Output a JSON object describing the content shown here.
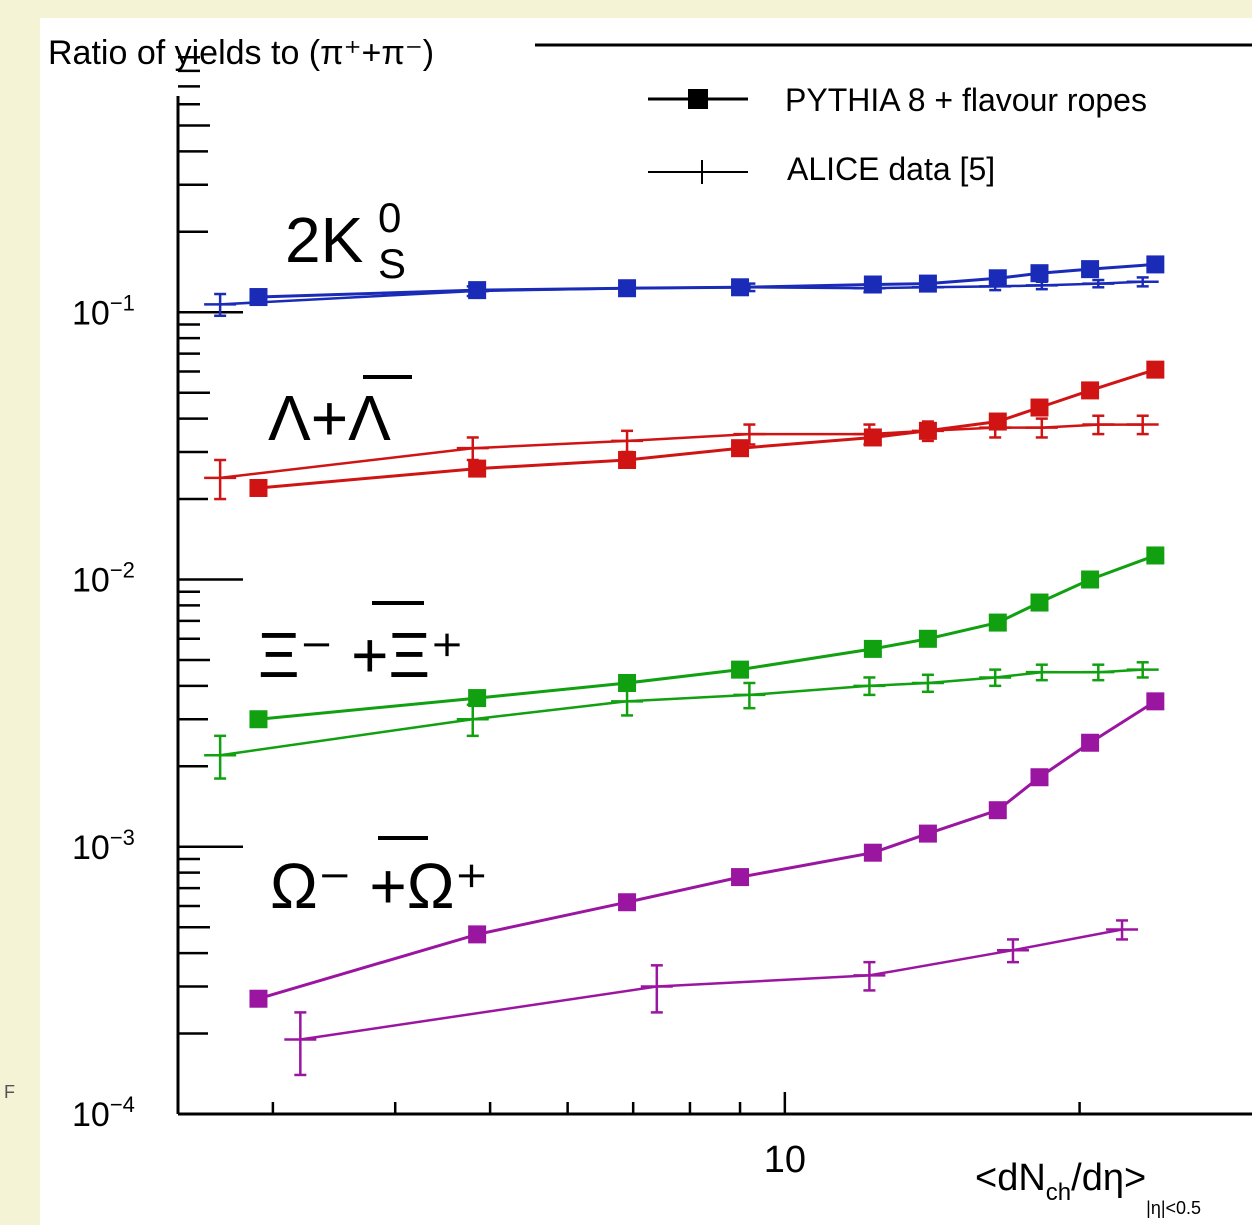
{
  "chart_data": {
    "type": "line",
    "title": "",
    "ylabel": "Ratio of yields to (π⁺+π⁻)",
    "xlabel": "<dN_ch/dη>_|η|<0.5",
    "xlabel_parts": {
      "main": "<dN",
      "sub1": "ch",
      "mid": "/dη>",
      "sub2": "|η|<0.5"
    },
    "xscale": "log",
    "yscale": "log",
    "xlim": [
      2.4,
      30
    ],
    "ylim": [
      0.0001,
      1
    ],
    "x_tick_labels": [
      "10"
    ],
    "y_tick_labels": [
      {
        "base": "10",
        "exp": "−1",
        "value": 0.1
      },
      {
        "base": "10",
        "exp": "−2",
        "value": 0.01
      },
      {
        "base": "10",
        "exp": "−3",
        "value": 0.001
      },
      {
        "base": "10",
        "exp": "−4",
        "value": 0.0001
      }
    ],
    "legend": {
      "placement": "top-right",
      "entries": [
        {
          "label": "PYTHIA 8 + flavour ropes",
          "marker": "square"
        },
        {
          "label": "ALICE data  [5]",
          "marker": "cross"
        }
      ]
    },
    "species_labels": [
      {
        "text": "2K",
        "sup": "0",
        "sub": "S"
      },
      {
        "text": "Λ+Λ",
        "overbar_last": true
      },
      {
        "text": "Ξ⁻ +Ξ⁺",
        "overbar_second": true
      },
      {
        "text": "Ω⁻ +Ω⁺",
        "overbar_second": true
      }
    ],
    "series": [
      {
        "name": "K0S PYTHIA",
        "kind": "model",
        "color": "#1a2bb8",
        "x": [
          2.9,
          4.85,
          6.9,
          9.0,
          12.3,
          14.0,
          16.5,
          18.2,
          20.5,
          23.9
        ],
        "y": [
          0.114,
          0.121,
          0.123,
          0.124,
          0.127,
          0.128,
          0.134,
          0.14,
          0.145,
          0.151
        ]
      },
      {
        "name": "K0S ALICE",
        "kind": "data",
        "color": "#1a2bb8",
        "x": [
          2.65,
          4.8,
          6.9,
          9.2,
          12.2,
          14.0,
          16.4,
          18.3,
          20.9,
          23.2
        ],
        "y": [
          0.107,
          0.12,
          0.123,
          0.124,
          0.123,
          0.124,
          0.125,
          0.126,
          0.128,
          0.13
        ],
        "yerr": [
          0.01,
          0.005,
          0.004,
          0.004,
          0.004,
          0.004,
          0.004,
          0.004,
          0.004,
          0.005
        ]
      },
      {
        "name": "Lambda PYTHIA",
        "kind": "model",
        "color": "#d01414",
        "x": [
          2.9,
          4.85,
          6.9,
          9.0,
          12.3,
          14.0,
          16.5,
          18.2,
          20.5,
          23.9
        ],
        "y": [
          0.022,
          0.026,
          0.028,
          0.031,
          0.034,
          0.036,
          0.039,
          0.044,
          0.051,
          0.061
        ]
      },
      {
        "name": "Lambda ALICE",
        "kind": "data",
        "color": "#d01414",
        "x": [
          2.65,
          4.8,
          6.9,
          9.2,
          12.2,
          14.0,
          16.4,
          18.3,
          20.9,
          23.2
        ],
        "y": [
          0.024,
          0.031,
          0.033,
          0.035,
          0.035,
          0.036,
          0.037,
          0.037,
          0.038,
          0.038
        ],
        "yerr": [
          0.004,
          0.003,
          0.003,
          0.003,
          0.003,
          0.003,
          0.003,
          0.003,
          0.003,
          0.003
        ]
      },
      {
        "name": "Xi PYTHIA",
        "kind": "model",
        "color": "#10a010",
        "x": [
          2.9,
          4.85,
          6.9,
          9.0,
          12.3,
          14.0,
          16.5,
          18.2,
          20.5,
          23.9
        ],
        "y": [
          0.003,
          0.0036,
          0.0041,
          0.0046,
          0.0055,
          0.006,
          0.0069,
          0.0082,
          0.01,
          0.0123
        ]
      },
      {
        "name": "Xi ALICE",
        "kind": "data",
        "color": "#10a010",
        "x": [
          2.65,
          4.8,
          6.9,
          9.2,
          12.2,
          14.0,
          16.4,
          18.3,
          20.9,
          23.2
        ],
        "y": [
          0.0022,
          0.003,
          0.0035,
          0.0037,
          0.004,
          0.0041,
          0.0043,
          0.0045,
          0.0045,
          0.0046
        ],
        "yerr": [
          0.0004,
          0.0004,
          0.0004,
          0.0004,
          0.0003,
          0.0003,
          0.0003,
          0.0003,
          0.0003,
          0.0003
        ]
      },
      {
        "name": "Omega PYTHIA",
        "kind": "model",
        "color": "#9b16a0",
        "x": [
          2.9,
          4.85,
          6.9,
          9.0,
          12.3,
          14.0,
          16.5,
          18.2,
          20.5,
          23.9
        ],
        "y": [
          0.00027,
          0.00047,
          0.00062,
          0.00077,
          0.00095,
          0.00112,
          0.00137,
          0.00182,
          0.00245,
          0.0035
        ]
      },
      {
        "name": "Omega ALICE",
        "kind": "data",
        "color": "#9b16a0",
        "x": [
          3.2,
          7.4,
          12.2,
          17.1,
          22.1
        ],
        "y": [
          0.00019,
          0.0003,
          0.00033,
          0.00041,
          0.00049
        ],
        "yerr": [
          5e-05,
          6e-05,
          4e-05,
          4e-05,
          4e-05
        ]
      }
    ]
  }
}
